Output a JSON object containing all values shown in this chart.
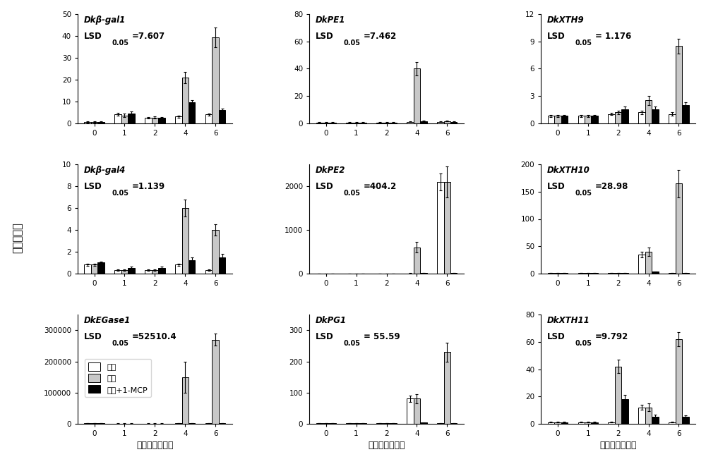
{
  "subplots": [
    {
      "title": "Dkβ-gal1",
      "lsd_val": "=7.607",
      "ylim": [
        0,
        50
      ],
      "yticks": [
        0,
        10,
        20,
        30,
        40,
        50
      ],
      "ctrl": [
        0.5,
        4.0,
        2.5,
        3.0,
        4.0
      ],
      "low": [
        0.5,
        3.5,
        2.5,
        21.0,
        39.5
      ],
      "mcp": [
        0.5,
        4.5,
        2.5,
        9.5,
        6.0
      ],
      "ctrl_err": [
        0.2,
        0.6,
        0.3,
        0.5,
        0.5
      ],
      "low_err": [
        0.2,
        0.8,
        0.5,
        2.5,
        4.5
      ],
      "mcp_err": [
        0.2,
        0.8,
        0.4,
        1.2,
        0.8
      ]
    },
    {
      "title": "DkPE1",
      "lsd_val": "=7.462",
      "ylim": [
        0,
        80
      ],
      "yticks": [
        0,
        20,
        40,
        60,
        80
      ],
      "ctrl": [
        0.5,
        0.5,
        0.5,
        1.0,
        1.0
      ],
      "low": [
        0.5,
        0.5,
        0.5,
        40.0,
        1.5
      ],
      "mcp": [
        0.5,
        0.5,
        0.5,
        1.5,
        1.0
      ],
      "ctrl_err": [
        0.1,
        0.1,
        0.1,
        0.3,
        0.2
      ],
      "low_err": [
        0.1,
        0.1,
        0.1,
        5.0,
        0.3
      ],
      "mcp_err": [
        0.1,
        0.1,
        0.1,
        0.3,
        0.2
      ]
    },
    {
      "title": "DkXTH9",
      "lsd_val": "= 1.176",
      "ylim": [
        0,
        12
      ],
      "yticks": [
        0,
        3,
        6,
        9,
        12
      ],
      "ctrl": [
        0.8,
        0.8,
        1.0,
        1.2,
        1.0
      ],
      "low": [
        0.8,
        0.8,
        1.2,
        2.5,
        8.5
      ],
      "mcp": [
        0.8,
        0.8,
        1.5,
        1.5,
        2.0
      ],
      "ctrl_err": [
        0.1,
        0.1,
        0.1,
        0.2,
        0.2
      ],
      "low_err": [
        0.1,
        0.1,
        0.2,
        0.5,
        0.8
      ],
      "mcp_err": [
        0.1,
        0.1,
        0.3,
        0.3,
        0.3
      ]
    },
    {
      "title": "Dkβ-gal4",
      "lsd_val": "=1.139",
      "ylim": [
        0,
        10
      ],
      "yticks": [
        0,
        2,
        4,
        6,
        8,
        10
      ],
      "ctrl": [
        0.8,
        0.3,
        0.3,
        0.8,
        0.3
      ],
      "low": [
        0.8,
        0.3,
        0.3,
        6.0,
        4.0
      ],
      "mcp": [
        1.0,
        0.5,
        0.5,
        1.2,
        1.5
      ],
      "ctrl_err": [
        0.1,
        0.05,
        0.05,
        0.1,
        0.05
      ],
      "low_err": [
        0.1,
        0.05,
        0.05,
        0.8,
        0.5
      ],
      "mcp_err": [
        0.1,
        0.1,
        0.1,
        0.3,
        0.3
      ]
    },
    {
      "title": "DkPE2",
      "lsd_val": "=404.2",
      "ylim": [
        0,
        2500
      ],
      "yticks": [
        0,
        1000,
        2000
      ],
      "ctrl": [
        2.0,
        2.0,
        2.0,
        3.0,
        2100.0
      ],
      "low": [
        2.0,
        2.0,
        2.0,
        600.0,
        2100.0
      ],
      "mcp": [
        2.0,
        2.0,
        2.0,
        5.0,
        5.0
      ],
      "ctrl_err": [
        0.5,
        0.5,
        0.5,
        1.0,
        200.0
      ],
      "low_err": [
        0.5,
        0.5,
        0.5,
        120.0,
        350.0
      ],
      "mcp_err": [
        0.5,
        0.5,
        0.5,
        1.0,
        1.0
      ]
    },
    {
      "title": "DkXTH10",
      "lsd_val": "=28.98",
      "ylim": [
        0,
        200
      ],
      "yticks": [
        0,
        50,
        100,
        150,
        200
      ],
      "ctrl": [
        1.0,
        1.0,
        1.0,
        35.0,
        1.0
      ],
      "low": [
        1.0,
        1.0,
        1.0,
        40.0,
        165.0
      ],
      "mcp": [
        1.0,
        1.0,
        1.0,
        3.0,
        1.0
      ],
      "ctrl_err": [
        0.2,
        0.2,
        0.2,
        5.0,
        0.2
      ],
      "low_err": [
        0.2,
        0.2,
        0.2,
        8.0,
        25.0
      ],
      "mcp_err": [
        0.2,
        0.2,
        0.2,
        1.0,
        0.2
      ]
    },
    {
      "title": "DkEGase1",
      "lsd_val": "=52510.4",
      "ylim": [
        0,
        350000
      ],
      "yticks": [
        0,
        100000,
        200000,
        300000
      ],
      "ctrl": [
        1000,
        500,
        500,
        1000,
        1000
      ],
      "low": [
        1000,
        500,
        500,
        150000,
        270000
      ],
      "mcp": [
        1000,
        500,
        500,
        1000,
        1000
      ],
      "ctrl_err": [
        200,
        100,
        100,
        200,
        200
      ],
      "low_err": [
        200,
        100,
        100,
        50000,
        20000
      ],
      "mcp_err": [
        200,
        100,
        100,
        200,
        200
      ]
    },
    {
      "title": "DkPG1",
      "lsd_val": "= 55.59",
      "ylim": [
        0,
        350
      ],
      "yticks": [
        0,
        100,
        200,
        300
      ],
      "ctrl": [
        1.0,
        1.0,
        1.0,
        80.0,
        1.0
      ],
      "low": [
        1.0,
        1.0,
        1.0,
        80.0,
        230.0
      ],
      "mcp": [
        1.0,
        1.0,
        1.0,
        3.0,
        1.0
      ],
      "ctrl_err": [
        0.2,
        0.2,
        0.2,
        10.0,
        0.2
      ],
      "low_err": [
        0.2,
        0.2,
        0.2,
        15.0,
        30.0
      ],
      "mcp_err": [
        0.2,
        0.2,
        0.2,
        1.0,
        0.2
      ]
    },
    {
      "title": "DkXTH11",
      "lsd_val": "=9.792",
      "ylim": [
        0,
        80
      ],
      "yticks": [
        0,
        20,
        40,
        60,
        80
      ],
      "ctrl": [
        1.0,
        1.0,
        1.0,
        12.0,
        1.0
      ],
      "low": [
        1.0,
        1.0,
        42.0,
        12.0,
        62.0
      ],
      "mcp": [
        1.0,
        1.0,
        18.0,
        5.0,
        5.0
      ],
      "ctrl_err": [
        0.2,
        0.2,
        0.2,
        2.0,
        0.2
      ],
      "low_err": [
        0.2,
        0.2,
        5.0,
        3.0,
        5.0
      ],
      "mcp_err": [
        0.2,
        0.2,
        3.0,
        1.5,
        1.0
      ]
    }
  ],
  "color_ctrl": "#ffffff",
  "color_low": "#c8c8c8",
  "color_mcp": "#000000",
  "edge_color": "#000000",
  "legend_labels": [
    "对照",
    "低氧",
    "低氧+1-MCP"
  ],
  "ylabel": "相对表达量",
  "xlabel": "贮藏天数（天）",
  "days_labels": [
    "0",
    "1",
    "2",
    "4",
    "6"
  ],
  "bar_width": 0.22
}
